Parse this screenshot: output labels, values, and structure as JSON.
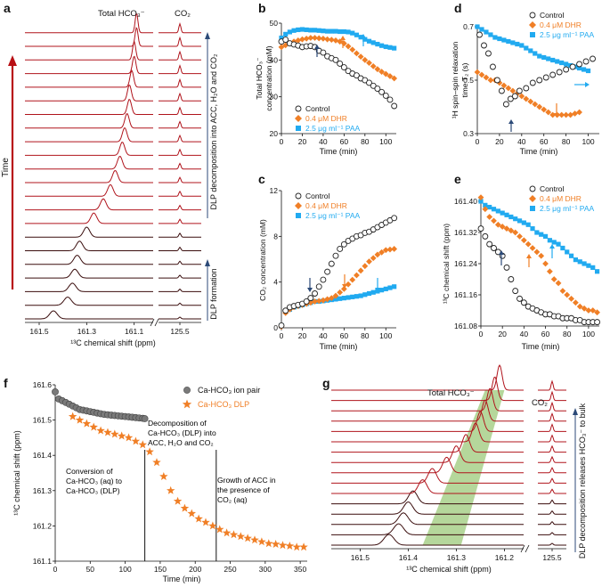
{
  "colors": {
    "control": "#222222",
    "dhr": "#f07f26",
    "paa": "#21aaf0",
    "trace_dark": "#3a0d0d",
    "trace_red": "#b0141c",
    "arrow_red": "#b80f14",
    "arrow_navy": "#2c4a78",
    "band_green": "#9cc97a"
  },
  "chart_data": [
    {
      "panel": "a",
      "type": "line",
      "label": "a",
      "peak_labels": [
        "Total HCO₃⁻",
        "CO₂"
      ],
      "xticks_main": [
        "161.5",
        "161.3",
        "161.1"
      ],
      "xticks_side": [
        "125.5"
      ],
      "xlabel": "¹³C chemical shift (ppm)",
      "time_label": "Time",
      "side_annotations": [
        "DLP decomposition into ACC, H₂O and CO₂",
        "DLP formation"
      ],
      "traces": 22,
      "peak_positions_ppm": [
        161.44,
        161.38,
        161.36,
        161.35,
        161.34,
        161.33,
        161.3,
        161.27,
        161.23,
        161.2,
        161.18,
        161.16,
        161.15,
        161.14,
        161.13,
        161.12,
        161.12,
        161.11,
        161.1,
        161.1,
        161.09,
        161.09
      ]
    },
    {
      "panel": "b",
      "type": "scatter",
      "label": "b",
      "xlabel": "Time (min)",
      "ylabel": "Total HCO₃⁻ concentration (mM)",
      "xlim": [
        0,
        110
      ],
      "ylim": [
        20,
        50
      ],
      "xticks": [
        0,
        20,
        40,
        60,
        80,
        100
      ],
      "yticks": [
        20,
        30,
        40,
        50
      ],
      "legend": [
        "Control",
        "0.4 μM DHR",
        "2.5 μg ml⁻¹ PAA"
      ],
      "series": [
        {
          "name": "Control",
          "x": [
            0,
            4,
            8,
            12,
            16,
            20,
            24,
            28,
            32,
            36,
            40,
            44,
            48,
            52,
            56,
            60,
            64,
            68,
            72,
            76,
            80,
            84,
            88,
            92,
            96,
            100,
            104,
            108
          ],
          "y": [
            45,
            45.5,
            44.5,
            44.2,
            43.9,
            43.5,
            43.7,
            43.8,
            43.5,
            42.5,
            42,
            41,
            40.5,
            40,
            39,
            38,
            37,
            36.3,
            35.8,
            35,
            34.5,
            33.8,
            33,
            32.2,
            31.3,
            30.3,
            29.2,
            27.5
          ]
        },
        {
          "name": "0.4 μM DHR",
          "x": [
            0,
            4,
            8,
            12,
            16,
            20,
            24,
            28,
            32,
            36,
            40,
            44,
            48,
            52,
            56,
            60,
            64,
            68,
            72,
            76,
            80,
            84,
            88,
            92,
            96,
            100,
            104,
            108
          ],
          "y": [
            43.5,
            44,
            44.6,
            45,
            45.3,
            45.6,
            45.8,
            46,
            46,
            45.9,
            45.8,
            45.6,
            45.5,
            45.3,
            45,
            44.5,
            43.7,
            42.8,
            41.8,
            40.9,
            40,
            39.2,
            38.3,
            37.5,
            36.8,
            36.2,
            35.6,
            35
          ]
        },
        {
          "name": "2.5 μg ml⁻¹ PAA",
          "x": [
            0,
            4,
            8,
            12,
            16,
            20,
            24,
            28,
            32,
            36,
            40,
            44,
            48,
            52,
            56,
            60,
            64,
            68,
            72,
            76,
            80,
            84,
            88,
            92,
            96,
            100,
            104,
            108
          ],
          "y": [
            46,
            47,
            47.6,
            48,
            48.2,
            48.3,
            48.2,
            48.1,
            48.1,
            48,
            47.9,
            47.8,
            47.8,
            47.8,
            47.7,
            47.7,
            47.6,
            47.3,
            46.8,
            46.2,
            45.6,
            45.1,
            44.7,
            44.3,
            43.9,
            43.6,
            43.4,
            43.2
          ]
        }
      ]
    },
    {
      "panel": "c",
      "type": "scatter",
      "label": "c",
      "xlabel": "Time (min)",
      "ylabel": "CO₂ concentration (mM)",
      "xlim": [
        0,
        110
      ],
      "ylim": [
        0,
        12
      ],
      "xticks": [
        0,
        20,
        40,
        60,
        80,
        100
      ],
      "yticks": [
        0,
        4,
        8,
        12
      ],
      "legend": [
        "Control",
        "0.4 μM DHR",
        "2.5 μg ml⁻¹ PAA"
      ],
      "series": [
        {
          "name": "Control",
          "x": [
            0,
            4,
            8,
            12,
            16,
            20,
            24,
            28,
            32,
            36,
            40,
            44,
            48,
            52,
            56,
            60,
            64,
            68,
            72,
            76,
            80,
            84,
            88,
            92,
            96,
            100,
            104,
            108
          ],
          "y": [
            0.2,
            1.5,
            1.8,
            1.9,
            2,
            2.1,
            2.3,
            2.6,
            3,
            3.6,
            4.2,
            4.9,
            5.6,
            6.3,
            6.9,
            7.3,
            7.6,
            7.8,
            8.0,
            8.1,
            8.3,
            8.4,
            8.6,
            8.8,
            9.0,
            9.2,
            9.4,
            9.6
          ]
        },
        {
          "name": "0.4 μM DHR",
          "x": [
            0,
            4,
            8,
            12,
            16,
            20,
            24,
            28,
            32,
            36,
            40,
            44,
            48,
            52,
            56,
            60,
            64,
            68,
            72,
            76,
            80,
            84,
            88,
            92,
            96,
            100,
            104,
            108
          ],
          "y": [
            0.1,
            1.3,
            1.6,
            1.8,
            1.9,
            2,
            2.1,
            2.2,
            2.3,
            2.35,
            2.4,
            2.5,
            2.6,
            2.8,
            3.1,
            3.4,
            3.8,
            4.2,
            4.6,
            5,
            5.4,
            5.8,
            6.1,
            6.4,
            6.6,
            6.8,
            6.85,
            6.9
          ]
        },
        {
          "name": "2.5 μg ml⁻¹ PAA",
          "x": [
            0,
            4,
            8,
            12,
            16,
            20,
            24,
            28,
            32,
            36,
            40,
            44,
            48,
            52,
            56,
            60,
            64,
            68,
            72,
            76,
            80,
            84,
            88,
            92,
            96,
            100,
            104,
            108
          ],
          "y": [
            0.2,
            1.4,
            1.6,
            1.8,
            1.9,
            2,
            2.1,
            2.2,
            2.3,
            2.3,
            2.35,
            2.4,
            2.45,
            2.5,
            2.55,
            2.6,
            2.65,
            2.7,
            2.75,
            2.8,
            2.9,
            3,
            3.1,
            3.2,
            3.3,
            3.4,
            3.5,
            3.6
          ]
        }
      ]
    },
    {
      "panel": "d",
      "type": "scatter",
      "label": "d",
      "xlabel": "Time (min)",
      "ylabel": "¹H spin–spin relaxation time T₂ (s)",
      "xlim": [
        0,
        110
      ],
      "ylim": [
        0.3,
        0.7
      ],
      "xticks": [
        0,
        20,
        40,
        60,
        80,
        100
      ],
      "yticks": [
        0.3,
        0.5,
        0.7
      ],
      "legend": [
        "Control",
        "0.4 μM DHR",
        "2.5 μg ml⁻¹ PAA"
      ],
      "series": [
        {
          "name": "Control",
          "x": [
            2,
            6,
            10,
            14,
            18,
            22,
            26,
            30,
            34,
            38,
            44,
            50,
            56,
            62,
            68,
            74,
            80,
            86,
            92,
            98,
            104
          ],
          "y": [
            0.67,
            0.63,
            0.6,
            0.55,
            0.5,
            0.46,
            0.41,
            0.43,
            0.44,
            0.46,
            0.47,
            0.49,
            0.5,
            0.51,
            0.52,
            0.53,
            0.54,
            0.55,
            0.56,
            0.57,
            0.58
          ]
        },
        {
          "name": "0.4 μM DHR",
          "x": [
            0,
            4,
            8,
            12,
            16,
            20,
            24,
            28,
            32,
            36,
            40,
            44,
            48,
            52,
            56,
            60,
            64,
            68,
            72,
            76,
            80,
            84,
            88,
            92
          ],
          "y": [
            0.53,
            0.52,
            0.51,
            0.5,
            0.5,
            0.49,
            0.48,
            0.47,
            0.46,
            0.45,
            0.44,
            0.43,
            0.42,
            0.41,
            0.4,
            0.39,
            0.38,
            0.37,
            0.37,
            0.37,
            0.37,
            0.37,
            0.375,
            0.38
          ]
        },
        {
          "name": "2.5 μg ml⁻¹ PAA",
          "x": [
            0,
            4,
            8,
            12,
            16,
            20,
            24,
            28,
            32,
            36,
            40,
            44,
            48,
            52,
            56,
            60,
            64,
            68,
            72,
            76,
            80,
            84,
            88,
            92,
            96,
            100
          ],
          "y": [
            0.7,
            0.69,
            0.68,
            0.67,
            0.66,
            0.655,
            0.65,
            0.645,
            0.64,
            0.635,
            0.63,
            0.62,
            0.61,
            0.6,
            0.59,
            0.585,
            0.58,
            0.575,
            0.57,
            0.565,
            0.56,
            0.555,
            0.55,
            0.545,
            0.54,
            0.535
          ]
        }
      ]
    },
    {
      "panel": "e",
      "type": "scatter",
      "label": "e",
      "xlabel": "Time (min)",
      "ylabel": "¹³C chemical shift (ppm)",
      "xlim": [
        0,
        110
      ],
      "ylim": [
        161.08,
        161.4
      ],
      "xticks": [
        0,
        20,
        40,
        60,
        80,
        100
      ],
      "yticks": [
        161.08,
        161.16,
        161.24,
        161.32,
        161.4
      ],
      "legend": [
        "Control",
        "0.4 μM DHR",
        "2.5 μg ml⁻¹ PAA"
      ],
      "series": [
        {
          "name": "Control",
          "x": [
            0,
            4,
            8,
            12,
            16,
            20,
            24,
            28,
            32,
            36,
            40,
            44,
            48,
            52,
            56,
            60,
            64,
            68,
            72,
            76,
            80,
            84,
            88,
            92,
            96,
            100,
            104,
            108
          ],
          "y": [
            161.33,
            161.31,
            161.29,
            161.28,
            161.27,
            161.26,
            161.23,
            161.2,
            161.17,
            161.15,
            161.14,
            161.13,
            161.125,
            161.12,
            161.115,
            161.11,
            161.11,
            161.105,
            161.105,
            161.1,
            161.1,
            161.1,
            161.095,
            161.095,
            161.09,
            161.09,
            161.09,
            161.09
          ]
        },
        {
          "name": "0.4 μM DHR",
          "x": [
            0,
            4,
            8,
            12,
            16,
            20,
            24,
            28,
            32,
            36,
            40,
            44,
            48,
            52,
            56,
            60,
            64,
            68,
            72,
            76,
            80,
            84,
            88,
            92,
            96,
            100,
            104,
            108
          ],
          "y": [
            161.41,
            161.38,
            161.36,
            161.35,
            161.34,
            161.335,
            161.33,
            161.325,
            161.32,
            161.31,
            161.3,
            161.29,
            161.28,
            161.27,
            161.26,
            161.24,
            161.22,
            161.2,
            161.19,
            161.17,
            161.16,
            161.15,
            161.14,
            161.13,
            161.125,
            161.12,
            161.12,
            161.115
          ]
        },
        {
          "name": "2.5 μg ml⁻¹ PAA",
          "x": [
            0,
            4,
            8,
            12,
            16,
            20,
            24,
            28,
            32,
            36,
            40,
            44,
            48,
            52,
            56,
            60,
            64,
            68,
            72,
            76,
            80,
            84,
            88,
            92,
            96,
            100,
            104,
            108
          ],
          "y": [
            161.4,
            161.39,
            161.385,
            161.38,
            161.375,
            161.37,
            161.365,
            161.36,
            161.355,
            161.35,
            161.345,
            161.34,
            161.33,
            161.32,
            161.315,
            161.31,
            161.3,
            161.295,
            161.29,
            161.28,
            161.27,
            161.26,
            161.25,
            161.245,
            161.24,
            161.235,
            161.23,
            161.22
          ]
        }
      ]
    },
    {
      "panel": "f",
      "type": "scatter",
      "label": "f",
      "xlabel": "Time (min)",
      "ylabel": "¹³C chemical shift (ppm)",
      "xlim": [
        0,
        360
      ],
      "ylim": [
        161.1,
        161.6
      ],
      "xticks": [
        0,
        50,
        100,
        150,
        200,
        250,
        300,
        350
      ],
      "yticks": [
        161.1,
        161.2,
        161.3,
        161.4,
        161.5,
        161.6
      ],
      "legend": [
        "Ca-HCO₃ ion pair",
        "Ca-HCO₃ DLP"
      ],
      "annotations": [
        "Conversion of Ca-HCO₃ (aq) to Ca-HCO₃ (DLP)",
        "Decomposition of Ca-HCO₃ (DLP) into ACC, H₂O and CO₂",
        "Growth of ACC in the presence of CO₂ (aq)"
      ],
      "vlines": [
        128,
        230
      ],
      "series": [
        {
          "name": "Ca-HCO₃ ion pair",
          "x": [
            0,
            5,
            10,
            15,
            20,
            25,
            30,
            35,
            40,
            45,
            50,
            55,
            60,
            65,
            70,
            75,
            80,
            85,
            90,
            95,
            100,
            105,
            110,
            115,
            120,
            125,
            128
          ],
          "y": [
            161.58,
            161.56,
            161.555,
            161.55,
            161.545,
            161.54,
            161.535,
            161.53,
            161.528,
            161.526,
            161.524,
            161.522,
            161.52,
            161.518,
            161.516,
            161.515,
            161.514,
            161.513,
            161.512,
            161.511,
            161.51,
            161.509,
            161.508,
            161.507,
            161.506,
            161.505,
            161.504
          ]
        },
        {
          "name": "Ca-HCO₃ DLP",
          "x": [
            25,
            35,
            45,
            55,
            65,
            75,
            85,
            95,
            105,
            115,
            125,
            135,
            145,
            155,
            165,
            175,
            185,
            195,
            205,
            215,
            225,
            235,
            245,
            255,
            265,
            275,
            285,
            295,
            305,
            315,
            325,
            335,
            345,
            355
          ],
          "y": [
            161.51,
            161.5,
            161.49,
            161.48,
            161.47,
            161.465,
            161.46,
            161.455,
            161.45,
            161.44,
            161.43,
            161.41,
            161.38,
            161.34,
            161.3,
            161.27,
            161.25,
            161.235,
            161.22,
            161.21,
            161.2,
            161.19,
            161.18,
            161.175,
            161.17,
            161.165,
            161.16,
            161.155,
            161.15,
            161.148,
            161.145,
            161.143,
            161.14,
            161.14
          ]
        }
      ]
    },
    {
      "panel": "g",
      "type": "line",
      "label": "g",
      "peak_labels": [
        "Total HCO₃⁻",
        "CO₂"
      ],
      "xticks_main": [
        "161.5",
        "161.4",
        "161.3",
        "161.2"
      ],
      "xticks_side": [
        "125.5"
      ],
      "xlabel": "¹³C chemical shift (ppm)",
      "side_annotation": "DLP decomposition releases HCO₃⁻ to bulk",
      "traces": 16,
      "peak_positions_ppm": [
        161.44,
        161.42,
        161.41,
        161.4,
        161.39,
        161.37,
        161.35,
        161.32,
        161.3,
        161.28,
        161.26,
        161.25,
        161.24,
        161.23,
        161.22,
        161.21
      ]
    }
  ]
}
